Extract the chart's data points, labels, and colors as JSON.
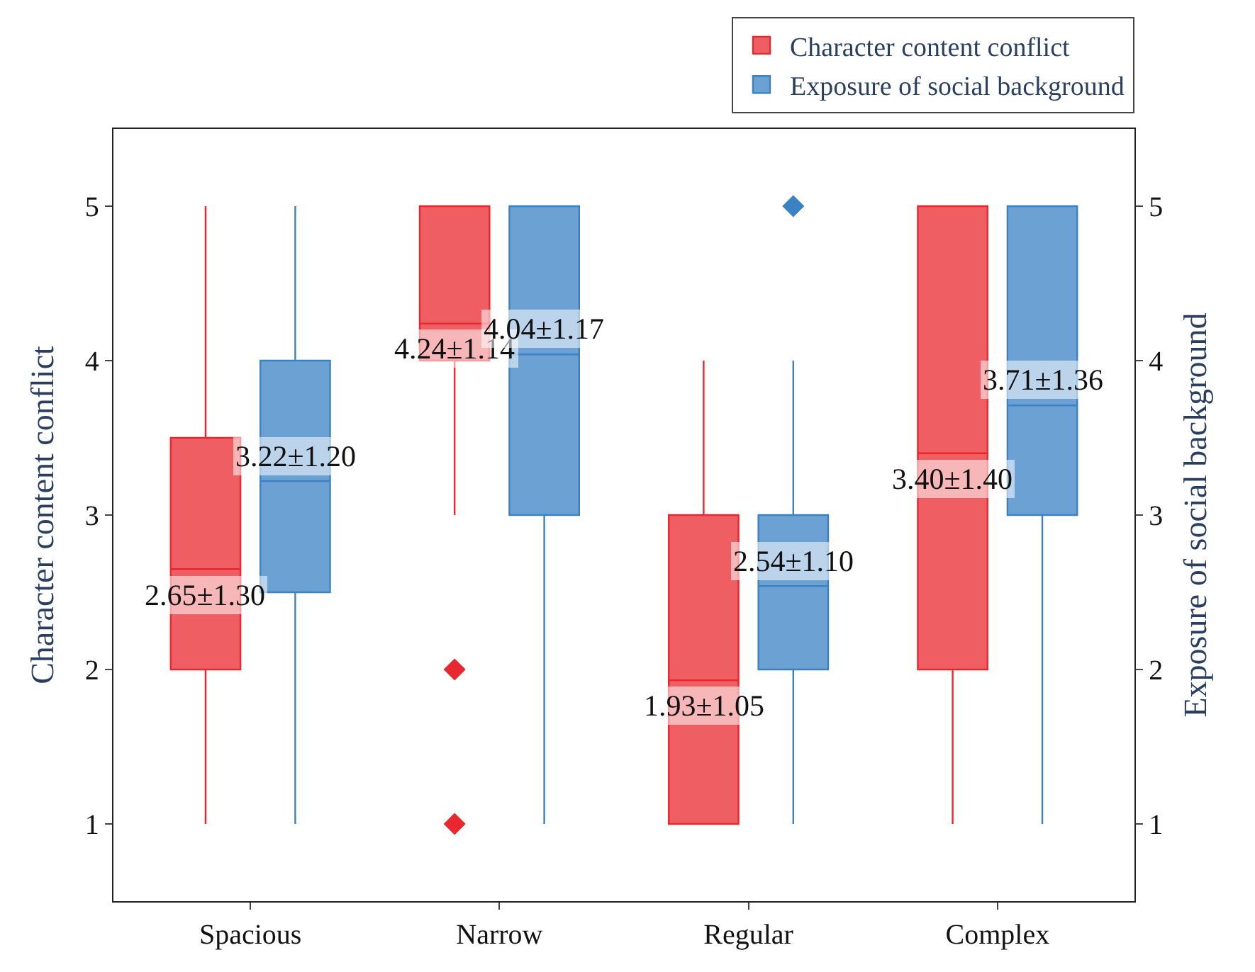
{
  "chart_data": {
    "type": "box",
    "categories": [
      "Spacious",
      "Narrow",
      "Regular",
      "Complex"
    ],
    "ylabel": "Character content conflict",
    "y2label": "Exposure of social background",
    "ylim": [
      0.5,
      5.5
    ],
    "yticks": [
      1,
      2,
      3,
      4,
      5
    ],
    "y2lim": [
      0.5,
      5.5
    ],
    "y2ticks": [
      1,
      2,
      3,
      4,
      5
    ],
    "legend": "top right",
    "series": [
      {
        "name": "Character content conflict",
        "color": "#e8282e",
        "boxes": [
          {
            "low": 1,
            "q1": 2,
            "median": 2.65,
            "q3": 3.5,
            "high": 5
          },
          {
            "low": 3,
            "q1": 4,
            "median": 4.24,
            "q3": 5,
            "high": 5,
            "outliers": [
              2,
              1
            ]
          },
          {
            "low": 1,
            "q1": 1,
            "median": 1.93,
            "q3": 3,
            "high": 4
          },
          {
            "low": 1,
            "q1": 2,
            "median": 3.4,
            "q3": 5,
            "high": 5
          }
        ]
      },
      {
        "name": "Exposure of social background",
        "color": "#3b82c4",
        "axis": "y2",
        "boxes": [
          {
            "low": 1,
            "q1": 2.5,
            "median": 3.22,
            "q3": 4,
            "high": 5
          },
          {
            "low": 1,
            "q1": 3,
            "median": 4.04,
            "q3": 5,
            "high": 5
          },
          {
            "low": 1,
            "q1": 2,
            "median": 2.54,
            "q3": 3,
            "high": 4,
            "outliers": [
              5
            ]
          },
          {
            "low": 1,
            "q1": 3,
            "median": 3.71,
            "q3": 5,
            "high": 5
          }
        ]
      }
    ],
    "annotations": [
      "2.65±1.30",
      "3.22±1.20",
      "4.24±1.14",
      "4.04±1.17",
      "1.93±1.05",
      "2.54±1.10",
      "3.40±1.40",
      "3.71±1.36"
    ]
  }
}
